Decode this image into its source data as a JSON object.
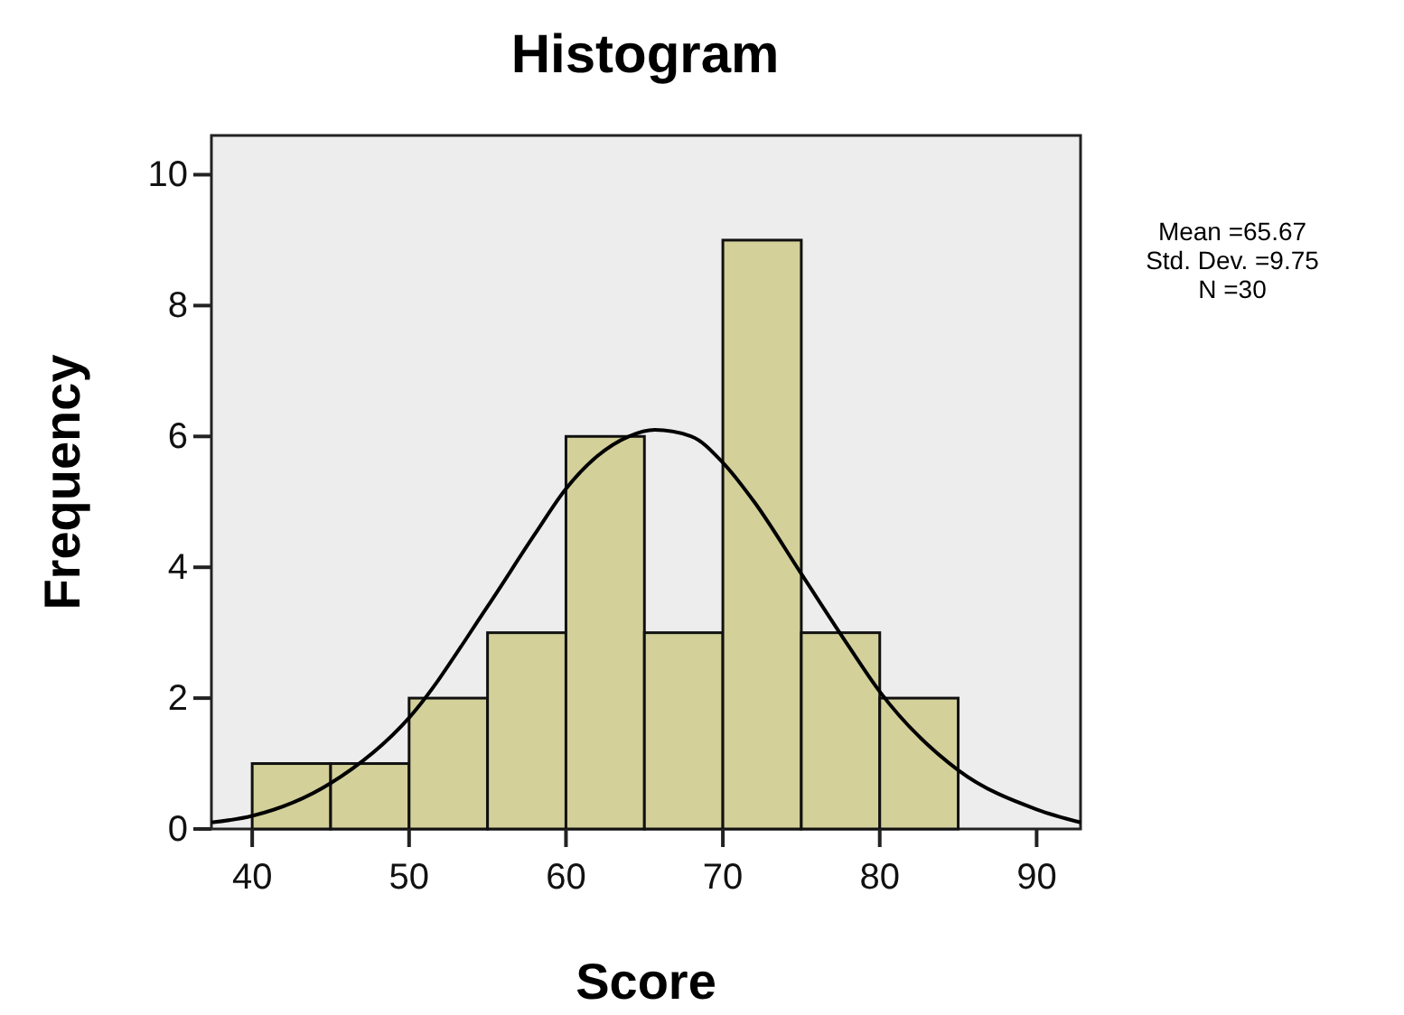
{
  "chart_data": {
    "type": "histogram",
    "title": "Histogram",
    "xlabel": "Score",
    "ylabel": "Frequency",
    "bins": [
      40,
      45,
      50,
      55,
      60,
      65,
      70,
      75,
      80,
      85
    ],
    "values": [
      1,
      1,
      2,
      3,
      6,
      3,
      9,
      3,
      2
    ],
    "color": "#d4d09a",
    "xlim": [
      37.4,
      92.8
    ],
    "xticks": [
      40,
      50,
      60,
      70,
      80,
      90
    ],
    "ylim": [
      0,
      10.6
    ],
    "yticks": [
      0,
      2,
      4,
      6,
      8,
      10
    ],
    "grid": false,
    "series": [
      {
        "type": "line",
        "color": "#000000",
        "line_style": "solid",
        "marker": "none",
        "x": [
          37.4,
          40,
          45,
          50,
          55,
          58,
          60,
          62,
          64,
          65.67,
          68,
          70,
          72,
          75,
          78,
          80,
          85,
          90,
          92.8
        ],
        "values": [
          0.1,
          0.2,
          0.7,
          1.7,
          3.4,
          4.5,
          5.2,
          5.7,
          6.0,
          6.1,
          6.0,
          5.6,
          5.0,
          3.9,
          2.8,
          2.1,
          0.9,
          0.3,
          0.1
        ]
      }
    ],
    "annotations": [
      "Mean =65.67",
      "Std. Dev. =9.75",
      "N =30"
    ]
  }
}
